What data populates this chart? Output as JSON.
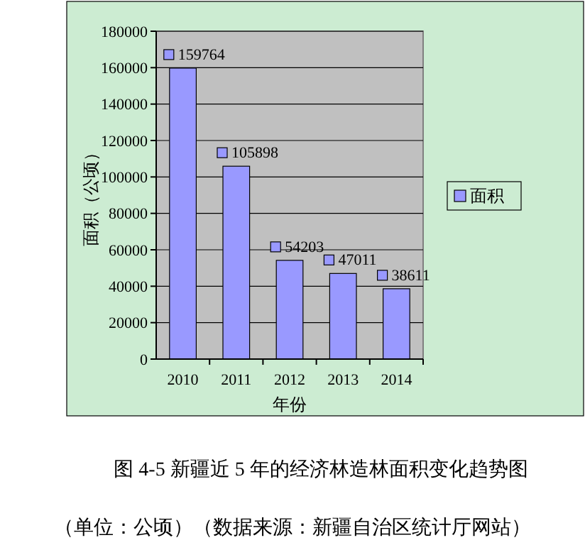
{
  "chart_data": {
    "type": "bar",
    "title": "图 4-5 新疆近 5 年的经济林造林面积变化趋势图",
    "subtitle": "（单位：公顷）（数据来源：新疆自治区统计厅网站）",
    "xlabel": "年份",
    "ylabel": "面积（公顷）",
    "categories": [
      "2010",
      "2011",
      "2012",
      "2013",
      "2014"
    ],
    "series": [
      {
        "name": "面积",
        "color": "#9999ff",
        "values": [
          159764,
          105898,
          54203,
          47011,
          38611
        ]
      }
    ],
    "ylim": [
      0,
      180000
    ],
    "yticks": [
      0,
      20000,
      40000,
      60000,
      80000,
      100000,
      120000,
      140000,
      160000,
      180000
    ],
    "grid": "y",
    "legend": "right",
    "data_labels": true
  }
}
